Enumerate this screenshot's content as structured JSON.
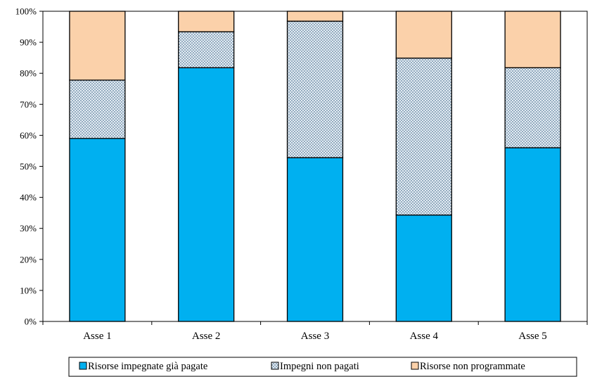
{
  "chart_data": {
    "type": "bar",
    "stacked": true,
    "percent": true,
    "categories": [
      "Asse 1",
      "Asse 2",
      "Asse 3",
      "Asse 4",
      "Asse 5"
    ],
    "series": [
      {
        "name": "Risorse impegnate già pagate",
        "values": [
          59.0,
          81.8,
          52.8,
          34.3,
          56.0
        ],
        "color": "#00b0f0",
        "pattern": "solid"
      },
      {
        "name": "Impegni non pagati",
        "values": [
          18.8,
          11.6,
          44.0,
          50.6,
          25.8
        ],
        "color": "#a9bfd1",
        "pattern": "dotted"
      },
      {
        "name": "Risorse non programmate",
        "values": [
          22.2,
          6.6,
          3.2,
          15.1,
          18.2
        ],
        "color": "#fbd1aa",
        "pattern": "solid"
      }
    ],
    "ylim": [
      0,
      100
    ],
    "yticks": [
      "0%",
      "10%",
      "20%",
      "30%",
      "40%",
      "50%",
      "60%",
      "70%",
      "80%",
      "90%",
      "100%"
    ],
    "grid": false,
    "legend_position": "bottom"
  }
}
